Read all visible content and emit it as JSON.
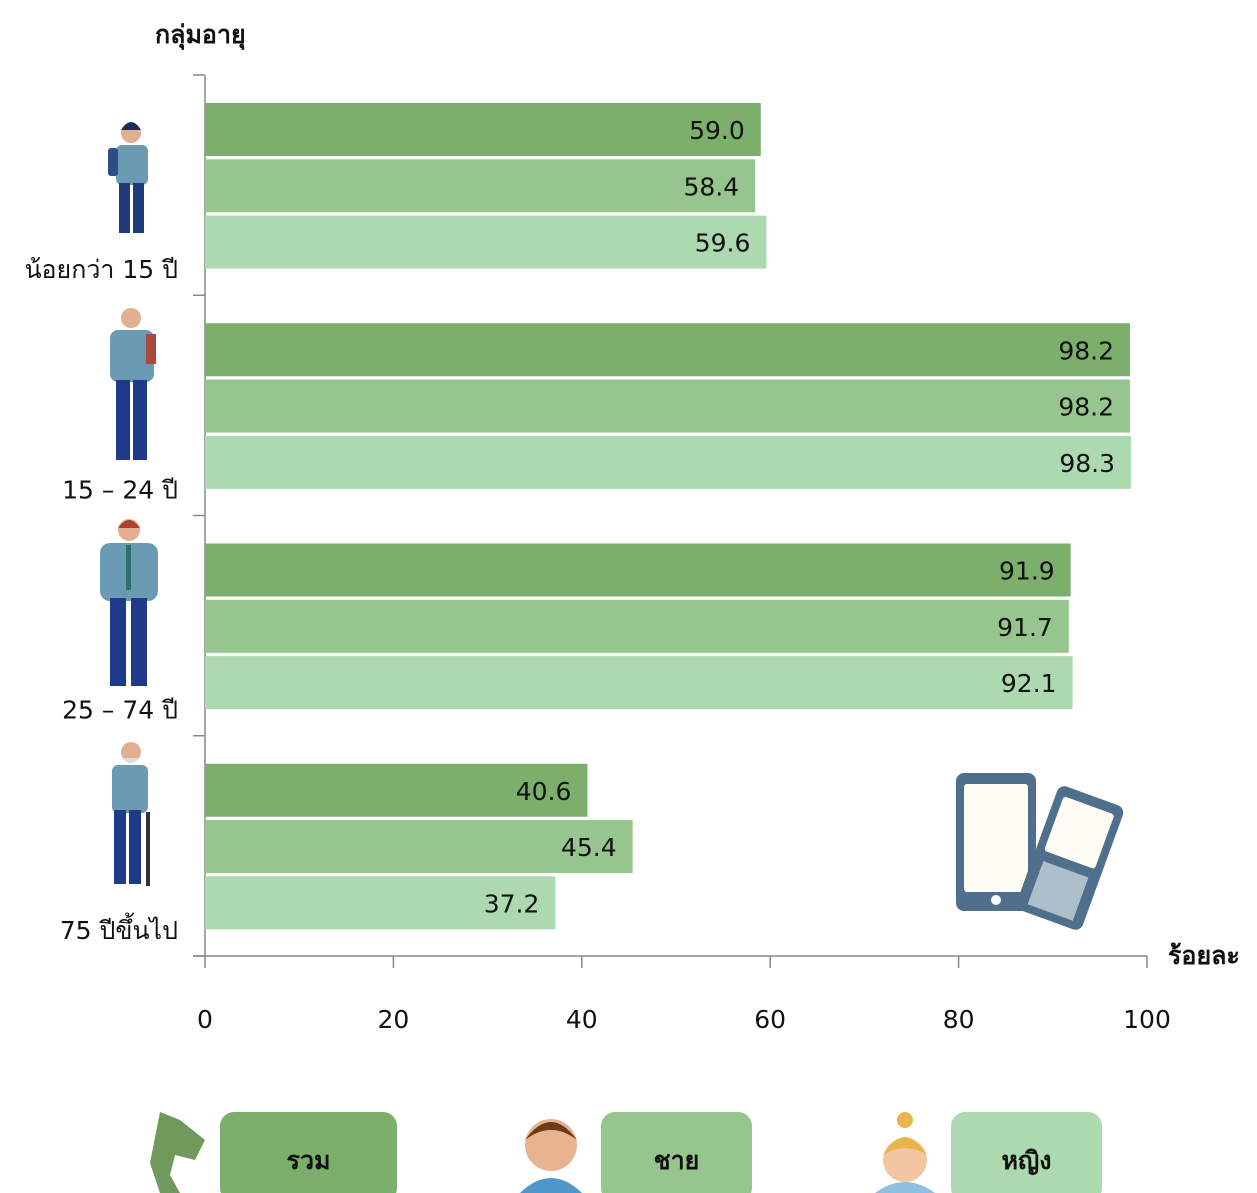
{
  "chart_data": {
    "type": "barh",
    "y_label": "กลุ่มอายุ",
    "x_label": "ร้อยละ",
    "categories": [
      "น้อยกว่า 15 ปี",
      "15 – 24 ปี",
      "25 – 74 ปี",
      "75 ปีขึ้นไป"
    ],
    "series": [
      {
        "name": "รวม",
        "color": "#7caf6b",
        "values": [
          59.0,
          98.2,
          91.9,
          40.6
        ],
        "value_labels": [
          "59.0",
          "98.2",
          "91.9",
          "40.6"
        ]
      },
      {
        "name": "ชาย",
        "color": "#97c58e",
        "values": [
          58.4,
          98.2,
          91.7,
          45.4
        ],
        "value_labels": [
          "58.4",
          "98.2",
          "91.7",
          "45.4"
        ]
      },
      {
        "name": "หญิง",
        "color": "#acd9b0",
        "values": [
          59.6,
          98.3,
          92.1,
          37.2
        ],
        "value_labels": [
          "59.6",
          "98.3",
          "92.1",
          "37.2"
        ]
      }
    ],
    "xlim": [
      0,
      100
    ],
    "xticks": [
      0,
      20,
      40,
      60,
      80,
      100
    ],
    "grid": false
  }
}
